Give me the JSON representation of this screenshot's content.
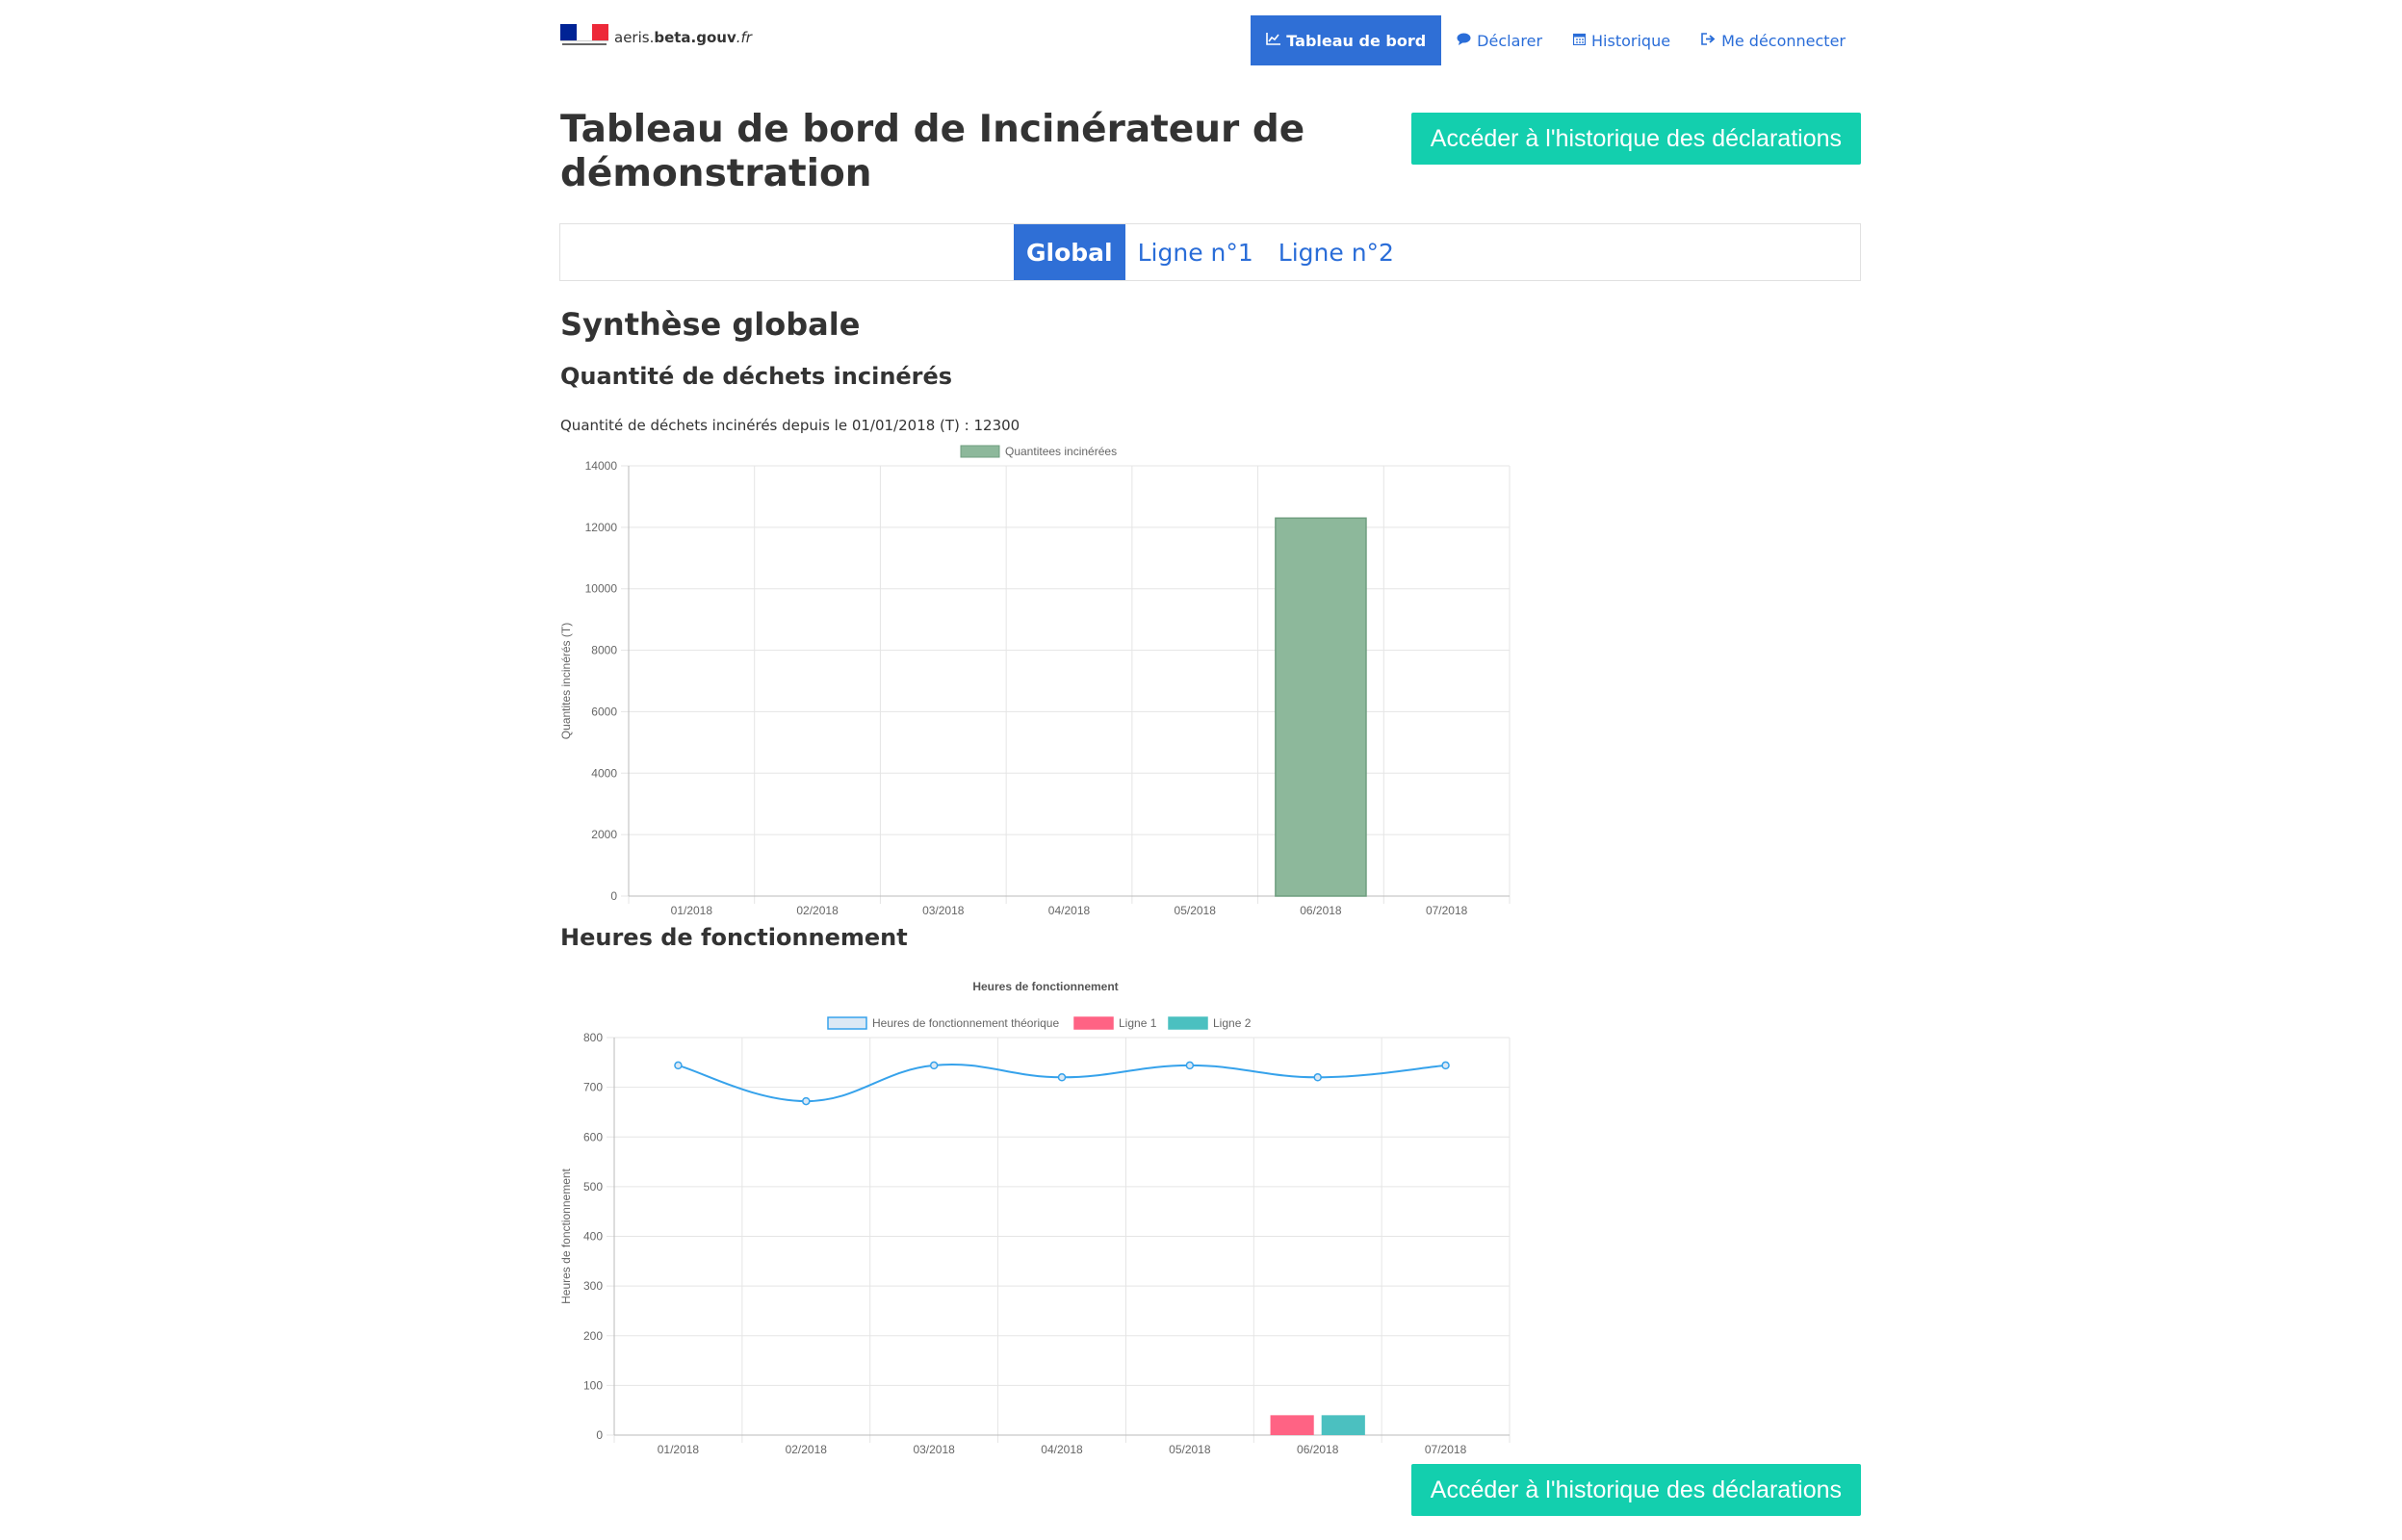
{
  "header": {
    "logo": {
      "prefix": "aeris.",
      "bold": "beta.gouv",
      "suffix": ".fr"
    },
    "nav": [
      {
        "label": "Tableau de bord",
        "icon": "line-chart-icon",
        "active": true
      },
      {
        "label": "Déclarer",
        "icon": "speech-bubble-icon",
        "active": false
      },
      {
        "label": "Historique",
        "icon": "calendar-icon",
        "active": false
      },
      {
        "label": "Me déconnecter",
        "icon": "sign-out-icon",
        "active": false
      }
    ]
  },
  "page": {
    "title": "Tableau de bord de Incinérateur de démonstration",
    "history_button": "Accéder à l'historique des déclarations"
  },
  "tabs": [
    {
      "label": "Global",
      "active": true
    },
    {
      "label": "Ligne n°1",
      "active": false
    },
    {
      "label": "Ligne n°2",
      "active": false
    }
  ],
  "synthese": {
    "title": "Synthèse globale",
    "waste_title": "Quantité de déchets incinérés",
    "waste_summary": "Quantité de déchets incinérés depuis le 01/01/2018 (T) : 12300",
    "hours_title": "Heures de fonctionnement"
  },
  "colors": {
    "accent": "#2f6fd6",
    "button": "#13cfae",
    "bar_green": "#8db89b",
    "line_blue": "#36a2eb",
    "ligne1": "#ff6384",
    "ligne2": "#4bc0c0"
  },
  "chart_data": [
    {
      "type": "bar",
      "categories": [
        "01/2018",
        "02/2018",
        "03/2018",
        "04/2018",
        "05/2018",
        "06/2018",
        "07/2018"
      ],
      "series": [
        {
          "name": "Quantitees incinérées",
          "values": [
            0,
            0,
            0,
            0,
            0,
            12300,
            0
          ]
        }
      ],
      "ylabel": "Quantites incinérés (T)",
      "ylim": [
        0,
        14000
      ],
      "yticks": [
        0,
        2000,
        4000,
        6000,
        8000,
        10000,
        12000,
        14000
      ],
      "legend": "top",
      "grid": true
    },
    {
      "type": "line",
      "title": "Heures de fonctionnement",
      "categories": [
        "01/2018",
        "02/2018",
        "03/2018",
        "04/2018",
        "05/2018",
        "06/2018",
        "07/2018"
      ],
      "series": [
        {
          "name": "Heures de fonctionnement théorique",
          "kind": "line",
          "values": [
            744,
            672,
            744,
            720,
            744,
            720,
            744
          ]
        },
        {
          "name": "Ligne 1",
          "kind": "bar",
          "values": [
            0,
            0,
            0,
            0,
            0,
            40,
            0
          ]
        },
        {
          "name": "Ligne 2",
          "kind": "bar",
          "values": [
            0,
            0,
            0,
            0,
            0,
            40,
            0
          ]
        }
      ],
      "ylabel": "Heures de fonctionnement",
      "ylim": [
        0,
        800
      ],
      "yticks": [
        0,
        100,
        200,
        300,
        400,
        500,
        600,
        700,
        800
      ],
      "legend": "top",
      "grid": true
    }
  ]
}
